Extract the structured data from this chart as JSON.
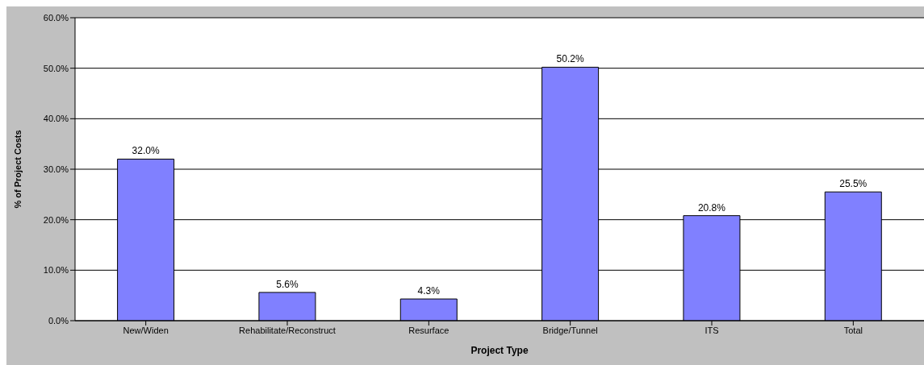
{
  "chart_data": {
    "type": "bar",
    "xlabel": "Project Type",
    "ylabel": "% of Project Costs",
    "categories": [
      "New/Widen",
      "Rehabilitate/Reconstruct",
      "Resurface",
      "Bridge/Tunnel",
      "ITS",
      "Total"
    ],
    "values": [
      32.0,
      5.6,
      4.3,
      50.2,
      20.8,
      25.5
    ],
    "value_labels": [
      "32.0%",
      "5.6%",
      "4.3%",
      "50.2%",
      "20.8%",
      "25.5%"
    ],
    "color": "#8080ff",
    "ylim": [
      0,
      60
    ],
    "yticks": [
      {
        "value": 0,
        "label": "0.0%"
      },
      {
        "value": 10,
        "label": "10.0%"
      },
      {
        "value": 20,
        "label": "20.0%"
      },
      {
        "value": 30,
        "label": "30.0%"
      },
      {
        "value": 40,
        "label": "40.0%"
      },
      {
        "value": 50,
        "label": "50.0%"
      },
      {
        "value": 60,
        "label": "60.0%"
      }
    ],
    "grid": "y",
    "legend": false
  }
}
